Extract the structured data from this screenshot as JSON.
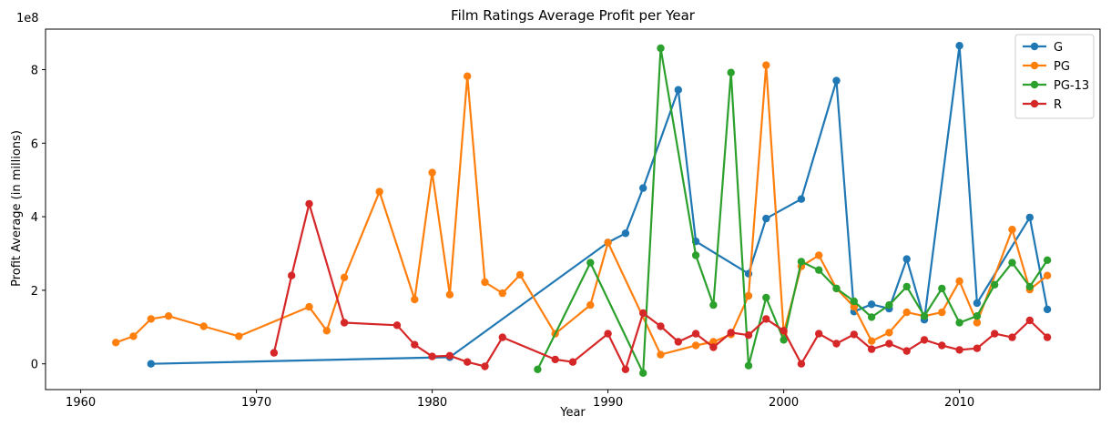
{
  "chart_data": {
    "type": "line",
    "title": "Film Ratings Average Profit per Year",
    "xlabel": "Year",
    "ylabel": "Profit Average (in millions)",
    "offset_label": "1e8",
    "xlim": [
      1958,
      2018
    ],
    "ylim": [
      -0.7,
      9.1
    ],
    "xticks": [
      1960,
      1970,
      1980,
      1990,
      2000,
      2010
    ],
    "yticks": [
      0,
      2,
      4,
      6,
      8
    ],
    "grid": false,
    "legend_position": "top-right",
    "series": [
      {
        "name": "G",
        "color": "#1f77b4",
        "points": [
          [
            1964,
            0.0
          ],
          [
            1981,
            0.18
          ],
          [
            1990,
            3.3
          ],
          [
            1991,
            3.55
          ],
          [
            1992,
            4.78
          ],
          [
            1994,
            7.45
          ],
          [
            1995,
            3.33
          ],
          [
            1998,
            2.45
          ],
          [
            1999,
            3.95
          ],
          [
            2001,
            4.48
          ],
          [
            2003,
            7.7
          ],
          [
            2004,
            1.42
          ],
          [
            2005,
            1.62
          ],
          [
            2006,
            1.5
          ],
          [
            2007,
            2.85
          ],
          [
            2008,
            1.2
          ],
          [
            2010,
            8.65
          ],
          [
            2011,
            1.65
          ],
          [
            2014,
            3.98
          ],
          [
            2015,
            1.48
          ]
        ]
      },
      {
        "name": "PG",
        "color": "#ff7f0e",
        "points": [
          [
            1962,
            0.58
          ],
          [
            1963,
            0.75
          ],
          [
            1964,
            1.22
          ],
          [
            1965,
            1.3
          ],
          [
            1967,
            1.02
          ],
          [
            1969,
            0.75
          ],
          [
            1973,
            1.55
          ],
          [
            1974,
            0.9
          ],
          [
            1975,
            2.35
          ],
          [
            1977,
            4.68
          ],
          [
            1979,
            1.75
          ],
          [
            1980,
            5.2
          ],
          [
            1981,
            1.88
          ],
          [
            1982,
            7.82
          ],
          [
            1983,
            2.22
          ],
          [
            1984,
            1.92
          ],
          [
            1985,
            2.42
          ],
          [
            1987,
            0.82
          ],
          [
            1989,
            1.6
          ],
          [
            1990,
            3.3
          ],
          [
            1993,
            0.25
          ],
          [
            1995,
            0.5
          ],
          [
            1996,
            0.6
          ],
          [
            1997,
            0.8
          ],
          [
            1998,
            1.85
          ],
          [
            1999,
            8.12
          ],
          [
            2000,
            0.85
          ],
          [
            2001,
            2.65
          ],
          [
            2002,
            2.95
          ],
          [
            2003,
            2.05
          ],
          [
            2004,
            1.55
          ],
          [
            2005,
            0.62
          ],
          [
            2006,
            0.85
          ],
          [
            2007,
            1.4
          ],
          [
            2008,
            1.3
          ],
          [
            2009,
            1.4
          ],
          [
            2010,
            2.25
          ],
          [
            2011,
            1.12
          ],
          [
            2013,
            3.65
          ],
          [
            2014,
            2.02
          ],
          [
            2015,
            2.4
          ]
        ]
      },
      {
        "name": "PG-13",
        "color": "#2ca02c",
        "points": [
          [
            1986,
            -0.15
          ],
          [
            1989,
            2.75
          ],
          [
            1992,
            -0.25
          ],
          [
            1993,
            8.58
          ],
          [
            1995,
            2.95
          ],
          [
            1996,
            1.6
          ],
          [
            1997,
            7.92
          ],
          [
            1998,
            -0.05
          ],
          [
            1999,
            1.8
          ],
          [
            2000,
            0.65
          ],
          [
            2001,
            2.78
          ],
          [
            2002,
            2.55
          ],
          [
            2003,
            2.05
          ],
          [
            2004,
            1.7
          ],
          [
            2005,
            1.27
          ],
          [
            2006,
            1.6
          ],
          [
            2007,
            2.1
          ],
          [
            2008,
            1.3
          ],
          [
            2009,
            2.05
          ],
          [
            2010,
            1.12
          ],
          [
            2011,
            1.3
          ],
          [
            2012,
            2.15
          ],
          [
            2013,
            2.75
          ],
          [
            2014,
            2.1
          ],
          [
            2015,
            2.82
          ]
        ]
      },
      {
        "name": "R",
        "color": "#d62728",
        "points": [
          [
            1971,
            0.3
          ],
          [
            1972,
            2.4
          ],
          [
            1973,
            4.35
          ],
          [
            1975,
            1.12
          ],
          [
            1978,
            1.05
          ],
          [
            1979,
            0.52
          ],
          [
            1980,
            0.2
          ],
          [
            1981,
            0.22
          ],
          [
            1982,
            0.05
          ],
          [
            1983,
            -0.07
          ],
          [
            1984,
            0.72
          ],
          [
            1987,
            0.12
          ],
          [
            1988,
            0.05
          ],
          [
            1990,
            0.82
          ],
          [
            1991,
            -0.15
          ],
          [
            1992,
            1.38
          ],
          [
            1993,
            1.02
          ],
          [
            1994,
            0.6
          ],
          [
            1995,
            0.82
          ],
          [
            1996,
            0.45
          ],
          [
            1997,
            0.85
          ],
          [
            1998,
            0.78
          ],
          [
            1999,
            1.22
          ],
          [
            2000,
            0.9
          ],
          [
            2001,
            0.0
          ],
          [
            2002,
            0.82
          ],
          [
            2003,
            0.55
          ],
          [
            2004,
            0.8
          ],
          [
            2005,
            0.4
          ],
          [
            2006,
            0.55
          ],
          [
            2007,
            0.35
          ],
          [
            2008,
            0.65
          ],
          [
            2009,
            0.5
          ],
          [
            2010,
            0.38
          ],
          [
            2011,
            0.42
          ],
          [
            2012,
            0.82
          ],
          [
            2013,
            0.72
          ],
          [
            2014,
            1.18
          ],
          [
            2015,
            0.72
          ]
        ]
      }
    ]
  }
}
